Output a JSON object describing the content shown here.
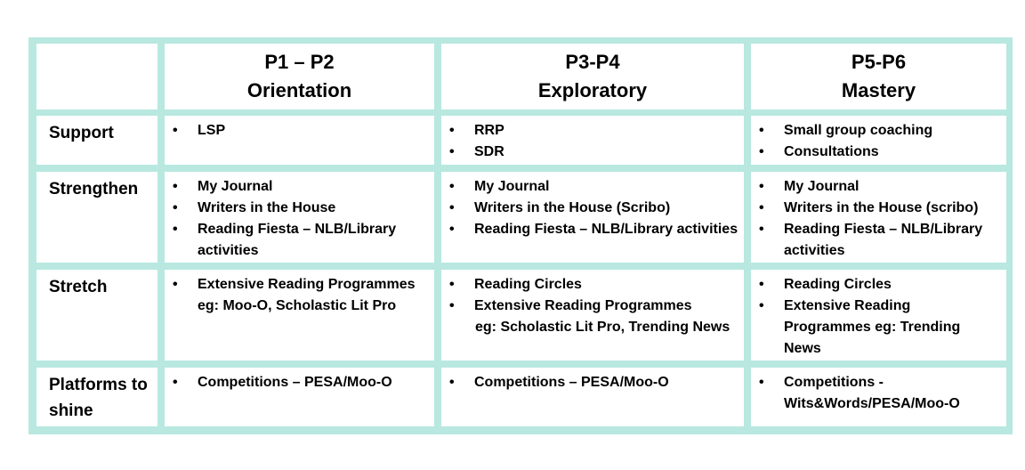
{
  "table": {
    "header": {
      "col1": {
        "line1": "P1 – P2",
        "line2": "Orientation"
      },
      "col2": {
        "line1": "P3-P4",
        "line2": "Exploratory"
      },
      "col3": {
        "line1": "P5-P6",
        "line2": "Mastery"
      }
    },
    "rows": [
      {
        "label": "Support",
        "col1": [
          "LSP"
        ],
        "col2": [
          "RRP",
          "SDR"
        ],
        "col3": [
          "Small group coaching",
          "Consultations"
        ]
      },
      {
        "label": "Strengthen",
        "col1": [
          "My Journal",
          "Writers in the House",
          "Reading Fiesta – NLB/Library activities"
        ],
        "col2": [
          "My Journal",
          "Writers in the House (Scribo)",
          "Reading Fiesta – NLB/Library activities"
        ],
        "col3": [
          "My Journal",
          "Writers in the House (scribo)",
          "Reading Fiesta – NLB/Library activities"
        ]
      },
      {
        "label": "Stretch",
        "col1": [
          "Extensive Reading Programmes eg: Moo-O, Scholastic Lit Pro"
        ],
        "col2": [
          "Reading Circles",
          "Extensive Reading Programmes",
          "eg: Scholastic Lit Pro, Trending News"
        ],
        "col3": [
          "Reading Circles",
          "Extensive Reading Programmes eg: Trending News"
        ]
      },
      {
        "label": "Platforms to shine",
        "col1": [
          "Competitions – PESA/Moo-O"
        ],
        "col2": [
          "Competitions – PESA/Moo-O"
        ],
        "col3": [
          "Competitions - Wits&Words/PESA/Moo-O"
        ]
      }
    ],
    "bullet_symbol": "•",
    "colors": {
      "border": "#b8e8e0",
      "cell": "#ffffff",
      "text": "#000000"
    }
  }
}
